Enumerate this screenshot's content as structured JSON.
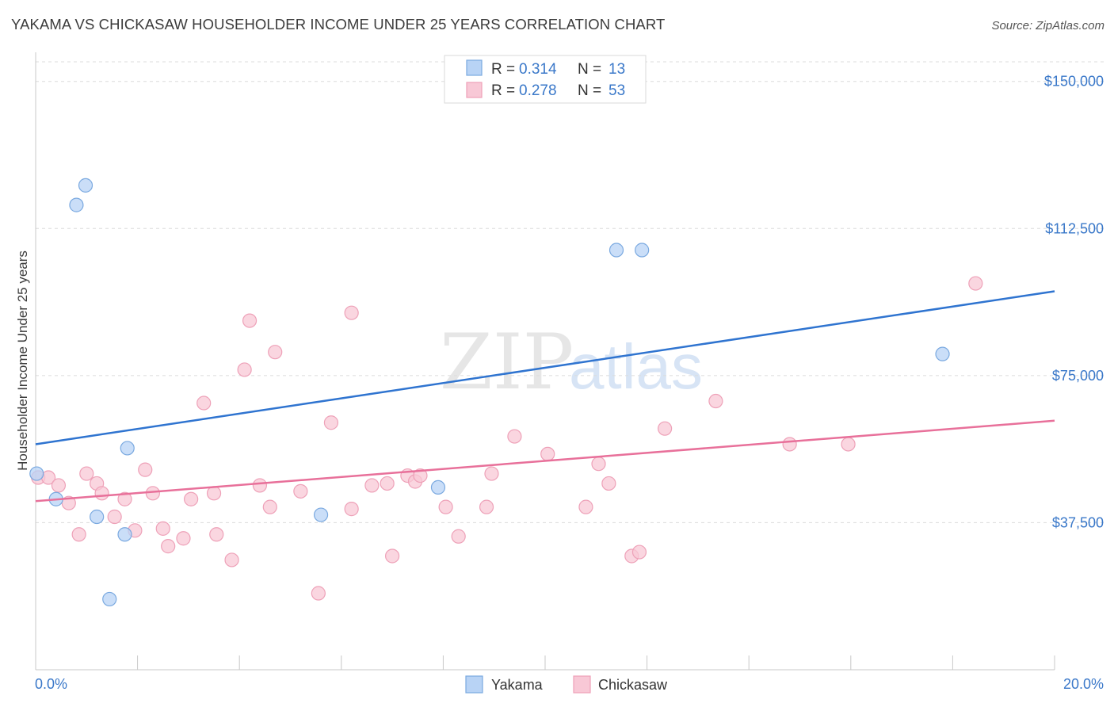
{
  "header": {
    "title": "YAKAMA VS CHICKASAW HOUSEHOLDER INCOME UNDER 25 YEARS CORRELATION CHART",
    "source": "Source: ZipAtlas.com"
  },
  "watermark": {
    "zip": "ZIP",
    "atlas": "atlas"
  },
  "colors": {
    "yakama_fill": "#b8d3f5",
    "yakama_stroke": "#7aa9e0",
    "yakama_line": "#2f74d0",
    "chickasaw_fill": "#f8c8d6",
    "chickasaw_stroke": "#eea1b8",
    "chickasaw_line": "#e8709a",
    "label_blue": "#3a78c9"
  },
  "legend": {
    "rows": [
      {
        "series": "Yakama",
        "r_label": "R =",
        "r_value": "0.314",
        "n_label": "N =",
        "n_value": "13"
      },
      {
        "series": "Chickasaw",
        "r_label": "R =",
        "r_value": "0.278",
        "n_label": "N =",
        "n_value": "53"
      }
    ]
  },
  "chart_data": {
    "type": "scatter",
    "title": "YAKAMA VS CHICKASAW HOUSEHOLDER INCOME UNDER 25 YEARS CORRELATION CHART",
    "xlabel": "",
    "ylabel": "Householder Income Under 25 years",
    "xlim": [
      0,
      20
    ],
    "ylim": [
      0,
      155000
    ],
    "x_tick_labels": [
      "0.0%",
      "20.0%"
    ],
    "y_ticks": [
      37500,
      75000,
      112500,
      150000
    ],
    "y_tick_labels": [
      "$37,500",
      "$75,000",
      "$112,500",
      "$150,000"
    ],
    "grid": true,
    "legend_position": "bottom-center",
    "series": [
      {
        "name": "Yakama",
        "points": [
          [
            0.02,
            50000
          ],
          [
            0.4,
            43500
          ],
          [
            0.8,
            118500
          ],
          [
            0.98,
            123500
          ],
          [
            1.2,
            39000
          ],
          [
            1.45,
            18000
          ],
          [
            1.75,
            34500
          ],
          [
            1.8,
            56500
          ],
          [
            5.6,
            39500
          ],
          [
            7.9,
            46500
          ],
          [
            11.4,
            107000
          ],
          [
            11.9,
            107000
          ],
          [
            17.8,
            80500
          ]
        ],
        "trend": {
          "x": [
            0,
            20
          ],
          "y": [
            57500,
            96500
          ]
        }
      },
      {
        "name": "Chickasaw",
        "points": [
          [
            0.05,
            49000
          ],
          [
            0.25,
            49000
          ],
          [
            0.45,
            47000
          ],
          [
            0.65,
            42500
          ],
          [
            0.85,
            34500
          ],
          [
            1.0,
            50000
          ],
          [
            1.2,
            47500
          ],
          [
            1.3,
            45000
          ],
          [
            1.55,
            39000
          ],
          [
            1.75,
            43500
          ],
          [
            1.95,
            35500
          ],
          [
            2.15,
            51000
          ],
          [
            2.3,
            45000
          ],
          [
            2.5,
            36000
          ],
          [
            2.6,
            31500
          ],
          [
            2.9,
            33500
          ],
          [
            3.05,
            43500
          ],
          [
            3.3,
            68000
          ],
          [
            3.5,
            45000
          ],
          [
            3.55,
            34500
          ],
          [
            3.85,
            28000
          ],
          [
            4.1,
            76500
          ],
          [
            4.2,
            89000
          ],
          [
            4.4,
            47000
          ],
          [
            4.6,
            41500
          ],
          [
            4.7,
            81000
          ],
          [
            5.2,
            45500
          ],
          [
            5.55,
            19500
          ],
          [
            5.8,
            63000
          ],
          [
            6.2,
            41000
          ],
          [
            6.2,
            91000
          ],
          [
            6.6,
            47000
          ],
          [
            6.9,
            47500
          ],
          [
            7.0,
            29000
          ],
          [
            7.3,
            49500
          ],
          [
            7.45,
            48000
          ],
          [
            7.55,
            49500
          ],
          [
            8.05,
            41500
          ],
          [
            8.3,
            34000
          ],
          [
            8.85,
            41500
          ],
          [
            8.95,
            50000
          ],
          [
            9.4,
            59500
          ],
          [
            10.05,
            55000
          ],
          [
            10.8,
            41500
          ],
          [
            11.05,
            52500
          ],
          [
            11.25,
            47500
          ],
          [
            11.7,
            29000
          ],
          [
            11.85,
            30000
          ],
          [
            12.35,
            61500
          ],
          [
            13.35,
            68500
          ],
          [
            14.8,
            57500
          ],
          [
            15.95,
            57500
          ],
          [
            18.45,
            98500
          ]
        ],
        "trend": {
          "x": [
            0,
            20
          ],
          "y": [
            43000,
            63500
          ]
        }
      }
    ]
  }
}
